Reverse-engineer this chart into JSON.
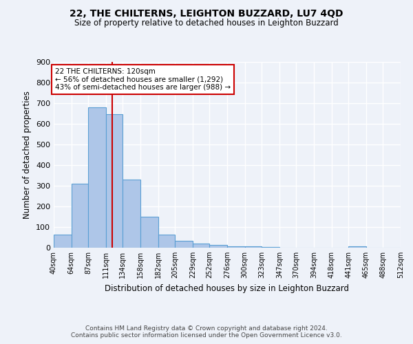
{
  "title1": "22, THE CHILTERNS, LEIGHTON BUZZARD, LU7 4QD",
  "title2": "Size of property relative to detached houses in Leighton Buzzard",
  "xlabel": "Distribution of detached houses by size in Leighton Buzzard",
  "ylabel": "Number of detached properties",
  "bin_edges": [
    40,
    64,
    87,
    111,
    134,
    158,
    182,
    205,
    229,
    252,
    276,
    300,
    323,
    347,
    370,
    394,
    418,
    441,
    465,
    488,
    512
  ],
  "bar_heights": [
    63,
    310,
    680,
    648,
    330,
    150,
    63,
    33,
    20,
    12,
    8,
    8,
    5,
    0,
    0,
    0,
    0,
    8,
    0,
    0
  ],
  "bar_facecolor": "#aec6e8",
  "bar_edgecolor": "#5a9fd4",
  "property_size": 120,
  "red_line_color": "#cc0000",
  "annotation_line1": "22 THE CHILTERNS: 120sqm",
  "annotation_line2": "← 56% of detached houses are smaller (1,292)",
  "annotation_line3": "43% of semi-detached houses are larger (988) →",
  "annotation_box_edgecolor": "#cc0000",
  "annotation_box_facecolor": "#ffffff",
  "ylim": [
    0,
    900
  ],
  "footer1": "Contains HM Land Registry data © Crown copyright and database right 2024.",
  "footer2": "Contains public sector information licensed under the Open Government Licence v3.0.",
  "tick_labels": [
    "40sqm",
    "64sqm",
    "87sqm",
    "111sqm",
    "134sqm",
    "158sqm",
    "182sqm",
    "205sqm",
    "229sqm",
    "252sqm",
    "276sqm",
    "300sqm",
    "323sqm",
    "347sqm",
    "370sqm",
    "394sqm",
    "418sqm",
    "441sqm",
    "465sqm",
    "488sqm",
    "512sqm"
  ],
  "background_color": "#eef2f9",
  "grid_color": "#ffffff",
  "yticks": [
    0,
    100,
    200,
    300,
    400,
    500,
    600,
    700,
    800,
    900
  ]
}
